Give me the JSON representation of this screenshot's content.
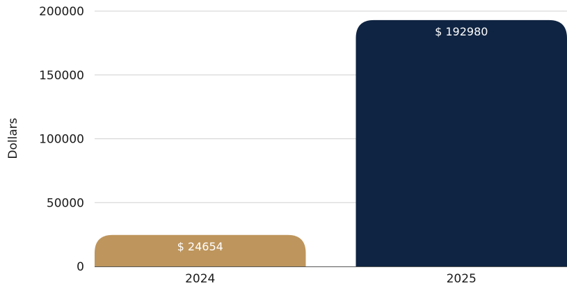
{
  "chart_data": {
    "type": "bar",
    "categories": [
      "2024",
      "2025"
    ],
    "values": [
      24654,
      192980
    ],
    "data_labels": [
      "$ 24654",
      "$ 192980"
    ],
    "colors": [
      "#BE955C",
      "#0F2442"
    ],
    "ylabel": "Dollars",
    "ylim": [
      0,
      200000
    ],
    "yticks": [
      0,
      50000,
      100000,
      150000,
      200000
    ],
    "ytick_labels": [
      "0",
      "50000",
      "100000",
      "150000",
      "200000"
    ],
    "grid": true,
    "legend": "none"
  }
}
